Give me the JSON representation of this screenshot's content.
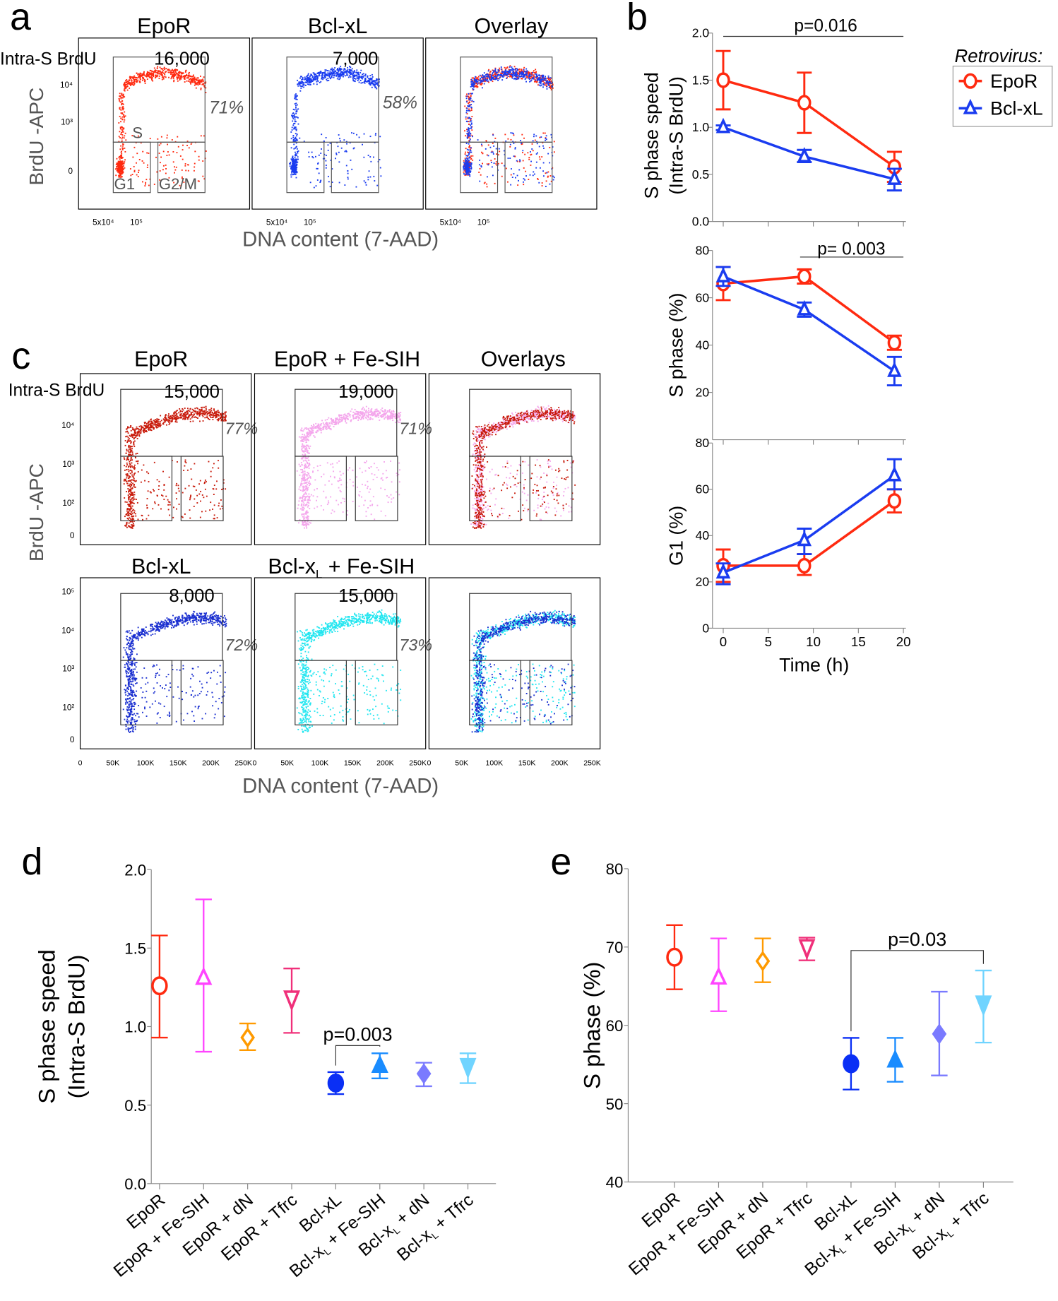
{
  "panel_labels": {
    "a": "a",
    "b": "b",
    "c": "c",
    "d": "d",
    "e": "e"
  },
  "panel_a": {
    "titles": [
      "EpoR",
      "Bcl-xL",
      "Overlay"
    ],
    "gate_label": "Intra-S BrdU",
    "gate_counts": [
      "16,000",
      "7,000"
    ],
    "s_percents": [
      "71%",
      "58%"
    ],
    "gate_names": [
      "S",
      "G1",
      "G2/M"
    ],
    "y_label": "BrdU -APC",
    "y_ticks": [
      "10⁴",
      "10³",
      "0"
    ],
    "x_ticks": [
      "5x10⁴",
      "10⁵"
    ],
    "x_label": "DNA content (7-AAD)",
    "colors": {
      "EpoR": "#ff2a10",
      "Bcl-xL": "#1a3cf0"
    }
  },
  "panel_c": {
    "titles_row1": [
      "EpoR",
      "EpoR + Fe-SIH",
      "Overlays"
    ],
    "titles_row2": [
      "Bcl-xL",
      "Bcl-xL + Fe-SIH"
    ],
    "gate_label": "Intra-S BrdU",
    "gate_counts": [
      "15,000",
      "19,000",
      "8,000",
      "15,000"
    ],
    "s_percents": [
      "77%",
      "71%",
      "72%",
      "73%"
    ],
    "y_label": "BrdU -APC",
    "y_ticks_row1": [
      "10⁴",
      "10³",
      "10²",
      "0"
    ],
    "y_ticks_row2": [
      "10⁵",
      "10⁴",
      "10³",
      "10²",
      "0"
    ],
    "x_ticks": [
      "0",
      "50K",
      "100K",
      "150K",
      "200K",
      "250K"
    ],
    "x_label": "DNA content (7-AAD)",
    "colors": {
      "EpoR": "#c81a0a",
      "EpoR + Fe-SIH": "#f4a6ec",
      "Bcl-xL": "#1a2fd0",
      "Bcl-xL + Fe-SIH": "#22e6f0"
    }
  },
  "chart_data": [
    {
      "type": "line",
      "panel": "b",
      "ylabel": [
        "S phase speed",
        "(Intra-S BrdU)"
      ],
      "ylim": [
        0,
        2.0
      ],
      "yticks": [
        "0.0",
        "0.5",
        "1.0",
        "1.5",
        "2.0"
      ],
      "x": [
        0,
        9,
        19
      ],
      "series": [
        {
          "name": "EpoR",
          "color": "#ff2a10",
          "marker": "open-circle",
          "values": [
            1.5,
            1.26,
            0.58
          ],
          "err_low": [
            1.19,
            0.94,
            0.42
          ],
          "err_high": [
            1.81,
            1.58,
            0.74
          ]
        },
        {
          "name": "Bcl-xL",
          "color": "#1a3cf0",
          "marker": "open-triangle",
          "values": [
            1.0,
            0.69,
            0.45
          ],
          "err_low": [
            0.97,
            0.63,
            0.33
          ],
          "err_high": [
            1.02,
            0.76,
            0.56
          ]
        }
      ],
      "annotation": "p=0.016"
    },
    {
      "type": "line",
      "panel": "b",
      "ylabel": [
        "S phase (%)"
      ],
      "ylim": [
        0,
        80
      ],
      "yticks": [
        "20",
        "40",
        "60",
        "80"
      ],
      "x": [
        0,
        9,
        19
      ],
      "series": [
        {
          "name": "EpoR",
          "color": "#ff2a10",
          "marker": "open-circle",
          "values": [
            66,
            69,
            41
          ],
          "err_low": [
            59,
            66,
            38
          ],
          "err_high": [
            73,
            72,
            44
          ]
        },
        {
          "name": "Bcl-xL",
          "color": "#1a3cf0",
          "marker": "open-triangle",
          "values": [
            69,
            55,
            29
          ],
          "err_low": [
            65,
            52,
            23
          ],
          "err_high": [
            73,
            58,
            35
          ]
        }
      ],
      "annotation": "p= 0.003"
    },
    {
      "type": "line",
      "panel": "b",
      "ylabel": [
        "G1 (%)"
      ],
      "xlabel": "Time (h)",
      "ylim": [
        0,
        80
      ],
      "yticks": [
        "0",
        "20",
        "40",
        "60",
        "80"
      ],
      "xlim": [
        0,
        20
      ],
      "xticks": [
        "0",
        "5",
        "10",
        "15",
        "20"
      ],
      "x": [
        0,
        9,
        19
      ],
      "series": [
        {
          "name": "EpoR",
          "color": "#ff2a10",
          "marker": "open-circle",
          "values": [
            27,
            27,
            55
          ],
          "err_low": [
            20,
            23,
            50
          ],
          "err_high": [
            34,
            32,
            60
          ]
        },
        {
          "name": "Bcl-xL",
          "color": "#1a3cf0",
          "marker": "open-triangle",
          "values": [
            24,
            38,
            66
          ],
          "err_low": [
            19,
            32,
            60
          ],
          "err_high": [
            28,
            43,
            73
          ]
        }
      ],
      "legend": {
        "title": "Retrovirus:",
        "entries": [
          "EpoR",
          "Bcl-xL"
        ],
        "placement": "top-right"
      }
    },
    {
      "type": "scatter",
      "panel": "d",
      "ylabel": [
        "S phase speed",
        "(Intra-S BrdU)"
      ],
      "ylim": [
        0,
        2.0
      ],
      "yticks": [
        "0.0",
        "0.5",
        "1.0",
        "1.5",
        "2.0"
      ],
      "categories": [
        "EpoR",
        "EpoR + Fe-SIH",
        "EpoR + dN",
        "EpoR + Tfrc",
        "Bcl-xL",
        "Bcl-xL + Fe-SIH",
        "Bcl-xL + dN",
        "Bcl-xL + Tfrc"
      ],
      "values": [
        1.26,
        1.31,
        0.93,
        1.17,
        0.64,
        0.75,
        0.7,
        0.74
      ],
      "err_low": [
        0.93,
        0.84,
        0.85,
        0.96,
        0.57,
        0.67,
        0.62,
        0.64
      ],
      "err_high": [
        1.58,
        1.81,
        1.02,
        1.37,
        0.71,
        0.83,
        0.77,
        0.83
      ],
      "colors": [
        "#ff2a10",
        "#ff44ff",
        "#ff9a00",
        "#f0307a",
        "#0a2ff5",
        "#1a8cff",
        "#7a7aff",
        "#70d4ff"
      ],
      "markers": [
        "open-circle",
        "open-triangle-up",
        "open-diamond",
        "open-triangle-down",
        "circle",
        "triangle-up",
        "diamond",
        "triangle-down"
      ],
      "annotation": {
        "text": "p=0.003",
        "between": [
          4,
          5
        ]
      }
    },
    {
      "type": "scatter",
      "panel": "e",
      "ylabel": [
        "S phase (%)"
      ],
      "ylim": [
        40,
        80
      ],
      "yticks": [
        "40",
        "50",
        "60",
        "70",
        "80"
      ],
      "categories": [
        "EpoR",
        "EpoR + Fe-SIH",
        "EpoR + dN",
        "EpoR + Tfrc",
        "Bcl-xL",
        "Bcl-xL + Fe-SIH",
        "Bcl-xL + dN",
        "Bcl-xL + Tfrc"
      ],
      "values": [
        68.7,
        66.1,
        68.2,
        69.8,
        55.1,
        55.5,
        58.9,
        62.6
      ],
      "err_low": [
        64.6,
        61.8,
        65.5,
        68.3,
        51.8,
        52.8,
        53.6,
        57.8
      ],
      "err_high": [
        72.8,
        71.1,
        71.1,
        71.2,
        58.4,
        58.4,
        64.3,
        67.0
      ],
      "colors": [
        "#ff2a10",
        "#ff44ff",
        "#ff9a00",
        "#f0307a",
        "#0a2ff5",
        "#1a8cff",
        "#7a7aff",
        "#70d4ff"
      ],
      "markers": [
        "open-circle",
        "open-triangle-up",
        "open-diamond",
        "open-triangle-down",
        "circle",
        "triangle-up",
        "diamond",
        "triangle-down"
      ],
      "annotation": {
        "text": "p=0.03",
        "between": [
          4,
          7
        ]
      }
    }
  ]
}
